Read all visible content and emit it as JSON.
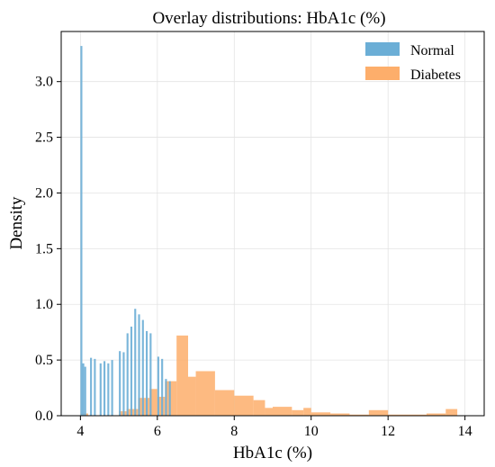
{
  "chart_data": {
    "type": "bar",
    "title": "Overlay distributions: HbA1c (%)",
    "xlabel": "HbA1c (%)",
    "ylabel": "Density",
    "xlim": [
      3.5,
      14.5
    ],
    "ylim": [
      0,
      3.45
    ],
    "xticks": [
      4,
      6,
      8,
      10,
      12,
      14
    ],
    "yticks": [
      0.0,
      0.5,
      1.0,
      1.5,
      2.0,
      2.5,
      3.0
    ],
    "xtick_labels": [
      "4",
      "6",
      "8",
      "10",
      "12",
      "14"
    ],
    "ytick_labels": [
      "0.0",
      "0.5",
      "1.0",
      "1.5",
      "2.0",
      "2.5",
      "3.0"
    ],
    "grid": true,
    "legend_position": "top-right",
    "series": [
      {
        "name": "Normal",
        "color": "#6baed6",
        "bins": [
          [
            4.0,
            4.05,
            3.32
          ],
          [
            4.05,
            4.1,
            0.47
          ],
          [
            4.1,
            4.15,
            0.44
          ],
          [
            4.25,
            4.3,
            0.52
          ],
          [
            4.35,
            4.4,
            0.51
          ],
          [
            4.5,
            4.55,
            0.47
          ],
          [
            4.6,
            4.65,
            0.49
          ],
          [
            4.7,
            4.75,
            0.47
          ],
          [
            4.8,
            4.85,
            0.5
          ],
          [
            5.0,
            5.05,
            0.58
          ],
          [
            5.1,
            5.15,
            0.57
          ],
          [
            5.2,
            5.25,
            0.74
          ],
          [
            5.3,
            5.35,
            0.8
          ],
          [
            5.4,
            5.45,
            0.96
          ],
          [
            5.5,
            5.55,
            0.91
          ],
          [
            5.6,
            5.65,
            0.86
          ],
          [
            5.7,
            5.75,
            0.76
          ],
          [
            5.8,
            5.85,
            0.74
          ],
          [
            6.0,
            6.05,
            0.53
          ],
          [
            6.1,
            6.15,
            0.51
          ],
          [
            6.2,
            6.25,
            0.33
          ],
          [
            6.3,
            6.35,
            0.31
          ]
        ]
      },
      {
        "name": "Diabetes",
        "color": "#fdae6b",
        "bins": [
          [
            4.0,
            4.2,
            0.02
          ],
          [
            5.0,
            5.2,
            0.04
          ],
          [
            5.2,
            5.5,
            0.06
          ],
          [
            5.5,
            5.8,
            0.16
          ],
          [
            5.8,
            6.0,
            0.24
          ],
          [
            6.0,
            6.2,
            0.17
          ],
          [
            6.2,
            6.5,
            0.31
          ],
          [
            6.5,
            6.8,
            0.72
          ],
          [
            6.8,
            7.0,
            0.35
          ],
          [
            7.0,
            7.5,
            0.4
          ],
          [
            7.5,
            8.0,
            0.23
          ],
          [
            8.0,
            8.5,
            0.18
          ],
          [
            8.5,
            8.8,
            0.14
          ],
          [
            8.8,
            9.0,
            0.07
          ],
          [
            9.0,
            9.5,
            0.08
          ],
          [
            9.5,
            9.8,
            0.05
          ],
          [
            9.8,
            10.0,
            0.07
          ],
          [
            10.0,
            10.5,
            0.03
          ],
          [
            10.5,
            11.0,
            0.02
          ],
          [
            11.0,
            11.5,
            0.01
          ],
          [
            11.5,
            12.0,
            0.05
          ],
          [
            12.0,
            13.0,
            0.01
          ],
          [
            13.0,
            13.5,
            0.02
          ],
          [
            13.5,
            13.8,
            0.06
          ]
        ]
      }
    ]
  }
}
